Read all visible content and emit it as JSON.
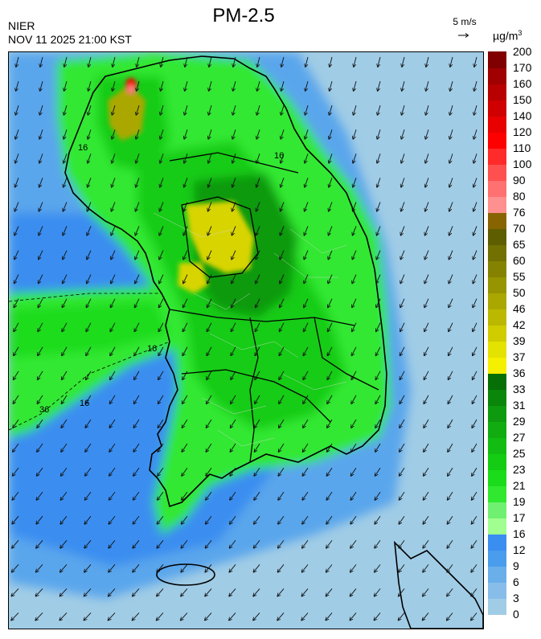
{
  "header": {
    "title": "PM-2.5",
    "org": "NIER",
    "timestamp": "NOV 11 2025 21:00 KST",
    "wind_scale": "5 m/s",
    "unit_base": "µg/m",
    "unit_exp": "3"
  },
  "legend": {
    "labels": [
      "0",
      "3",
      "6",
      "9",
      "12",
      "16",
      "17",
      "19",
      "21",
      "23",
      "25",
      "27",
      "29",
      "31",
      "33",
      "36",
      "37",
      "39",
      "42",
      "46",
      "50",
      "55",
      "60",
      "65",
      "70",
      "76",
      "80",
      "90",
      "100",
      "110",
      "120",
      "140",
      "150",
      "160",
      "170",
      "200"
    ],
    "colors": [
      "#a0cce6",
      "#87bde8",
      "#6aaeea",
      "#4a9cec",
      "#3a8ef0",
      "#a0ff90",
      "#70f070",
      "#30e830",
      "#1adc1a",
      "#14cc14",
      "#12bc12",
      "#10ac10",
      "#0e9a0e",
      "#0a860a",
      "#067006",
      "#f4f000",
      "#e4e200",
      "#d0cc00",
      "#bcb800",
      "#aaa800",
      "#969400",
      "#848200",
      "#727000",
      "#5e5e00",
      "#886400",
      "#ff9090",
      "#ff7070",
      "#ff5050",
      "#ff2a2a",
      "#ff0000",
      "#e80000",
      "#d00000",
      "#b80000",
      "#a00000",
      "#800000"
    ],
    "contour_labels": [
      "16",
      "16",
      "16",
      "16",
      "36"
    ]
  }
}
